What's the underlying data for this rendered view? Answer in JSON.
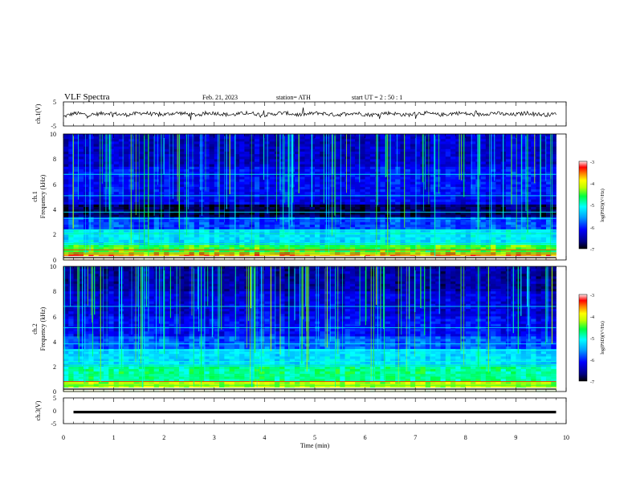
{
  "header": {
    "title": "VLF Spectra",
    "date": "Feb. 21, 2023",
    "station": "station= ATH",
    "start": "start UT =   2 : 50 : 1"
  },
  "chart_data": [
    {
      "id": "ch1-waveform",
      "type": "line",
      "ylabel": "ch.1(V)",
      "ylim": [
        -5,
        5
      ],
      "yticks": [
        "5",
        "-5"
      ],
      "xlim": [
        0,
        10
      ],
      "baseline": 0,
      "series_color": "#000000"
    },
    {
      "id": "ch1-spectrogram",
      "type": "heatmap",
      "ylabel_top": "ch.1",
      "ylabel": "Frequency (kHz)",
      "ylim": [
        0,
        10
      ],
      "yticks": [
        "0",
        "2",
        "4",
        "6",
        "8",
        "10"
      ],
      "xlim": [
        0,
        10
      ],
      "colorbar": {
        "label": "log(PSD)(V²/Hz)",
        "range": [
          -7,
          -3
        ],
        "ticks": [
          "-3",
          "-4",
          "-5",
          "-6",
          "-7"
        ]
      }
    },
    {
      "id": "ch2-spectrogram",
      "type": "heatmap",
      "ylabel_top": "ch.2",
      "ylabel": "Frequency (kHz)",
      "ylim": [
        0,
        10
      ],
      "yticks": [
        "0",
        "2",
        "4",
        "6",
        "8",
        "10"
      ],
      "xlim": [
        0,
        10
      ],
      "colorbar": {
        "label": "log(PSD)(V²/Hz)",
        "range": [
          -7,
          -3
        ],
        "ticks": [
          "-3",
          "-4",
          "-5",
          "-6",
          "-7"
        ]
      }
    },
    {
      "id": "ch3-waveform",
      "type": "line",
      "ylabel": "ch.3(V)",
      "ylim": [
        -5,
        5
      ],
      "yticks": [
        "5",
        "0",
        "-5"
      ],
      "xlim": [
        0,
        10
      ],
      "baseline": -0.5,
      "series_color": "#000000"
    }
  ],
  "xaxis": {
    "label": "Time (min)",
    "ticks": [
      "0",
      "1",
      "2",
      "3",
      "4",
      "5",
      "6",
      "7",
      "8",
      "9",
      "10"
    ]
  },
  "colors": {
    "background": "#ffffff",
    "frame": "#000000"
  }
}
